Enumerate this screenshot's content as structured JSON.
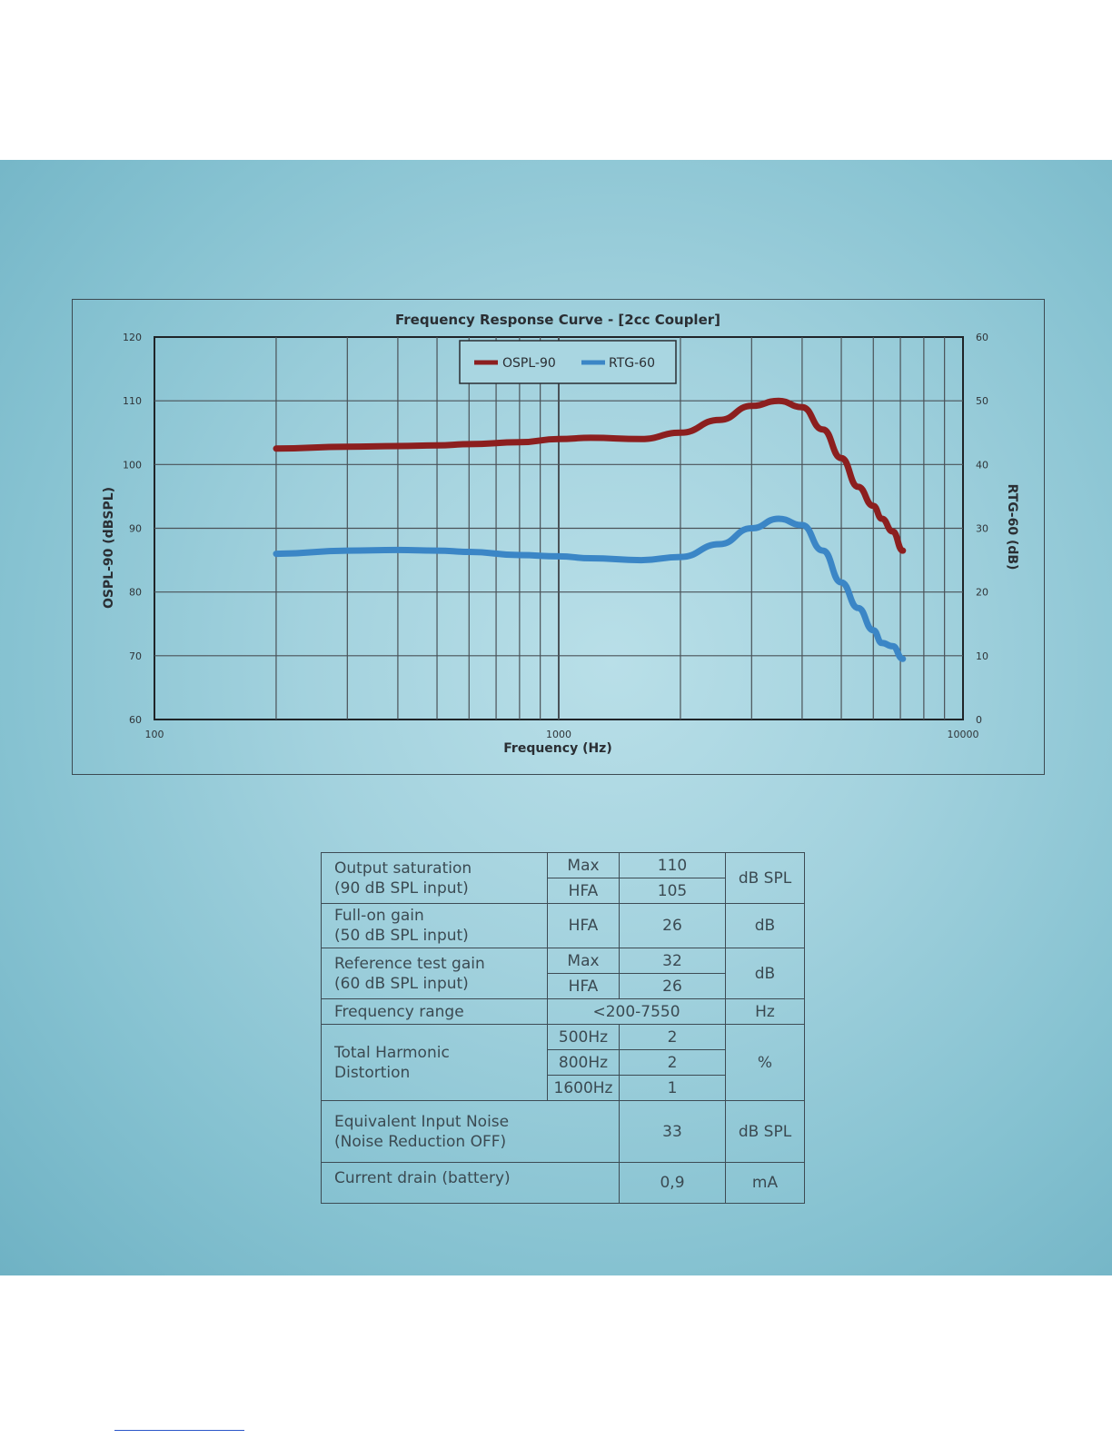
{
  "colors": {
    "background_band": "#9fd0dc",
    "ospl_series": "#8c1f1f",
    "rtg_series": "#3b86c6",
    "grid": "#4a5258"
  },
  "chart_data": {
    "type": "line",
    "title": "Frequency Response Curve - [2cc Coupler]",
    "xlabel": "Frequency (Hz)",
    "ylabel_left": "OSPL-90 (dBSPL)",
    "ylabel_right": "RTG-60 (dB)",
    "x_scale": "log",
    "xlim": [
      100,
      10000
    ],
    "x_ticks": [
      100,
      1000,
      10000
    ],
    "ylim_left": [
      60,
      120
    ],
    "y_ticks_left": [
      60,
      70,
      80,
      90,
      100,
      110,
      120
    ],
    "ylim_right": [
      0,
      60
    ],
    "y_ticks_right": [
      0,
      10,
      20,
      30,
      40,
      50,
      60
    ],
    "grid": true,
    "legend_position": "top-center",
    "series": [
      {
        "name": "OSPL-90",
        "axis": "left",
        "x": [
          200,
          300,
          400,
          500,
          600,
          800,
          1000,
          1200,
          1600,
          2000,
          2500,
          3000,
          3500,
          4000,
          4500,
          5000,
          5500,
          6000,
          6300,
          6700,
          7100
        ],
        "y": [
          102.5,
          102.8,
          102.9,
          103.0,
          103.2,
          103.5,
          104.0,
          104.2,
          104.0,
          105.0,
          107.0,
          109.2,
          110.0,
          109.0,
          105.5,
          101.0,
          96.5,
          93.5,
          91.5,
          89.5,
          86.5
        ]
      },
      {
        "name": "RTG-60",
        "axis": "right",
        "x": [
          200,
          300,
          400,
          500,
          600,
          800,
          1000,
          1200,
          1600,
          2000,
          2500,
          3000,
          3500,
          4000,
          4500,
          5000,
          5500,
          6000,
          6300,
          6700,
          7100
        ],
        "y": [
          26.0,
          26.5,
          26.6,
          26.5,
          26.3,
          25.8,
          25.6,
          25.3,
          25.0,
          25.5,
          27.5,
          30.0,
          31.5,
          30.5,
          26.5,
          21.5,
          17.5,
          14.0,
          12.0,
          11.5,
          9.5
        ]
      }
    ]
  },
  "spec_table": {
    "output_saturation": {
      "param": "Output saturation\n(90 dB SPL input)",
      "max_label": "Max",
      "max_value": "110",
      "hfa_label": "HFA",
      "hfa_value": "105",
      "unit": "dB SPL"
    },
    "full_on_gain": {
      "param": "Full-on gain\n(50 dB SPL input)",
      "cond": "HFA",
      "value": "26",
      "unit": "dB"
    },
    "reference_test_gain": {
      "param": "Reference test gain\n(60 dB SPL input)",
      "max_label": "Max",
      "max_value": "32",
      "hfa_label": "HFA",
      "hfa_value": "26",
      "unit": "dB"
    },
    "frequency_range": {
      "param": "Frequency range",
      "value": "<200-7550",
      "unit": "Hz"
    },
    "thd": {
      "param": "Total Harmonic\nDistortion",
      "f1": "500Hz",
      "v1": "2",
      "f2": "800Hz",
      "v2": "2",
      "f3": "1600Hz",
      "v3": "1",
      "unit": "%"
    },
    "ein": {
      "param": "Equivalent Input Noise\n(Noise Reduction OFF)",
      "value": "33",
      "unit": "dB SPL"
    },
    "current_drain": {
      "param": "Current drain (battery)",
      "value": "0,9",
      "unit": "mA"
    }
  }
}
